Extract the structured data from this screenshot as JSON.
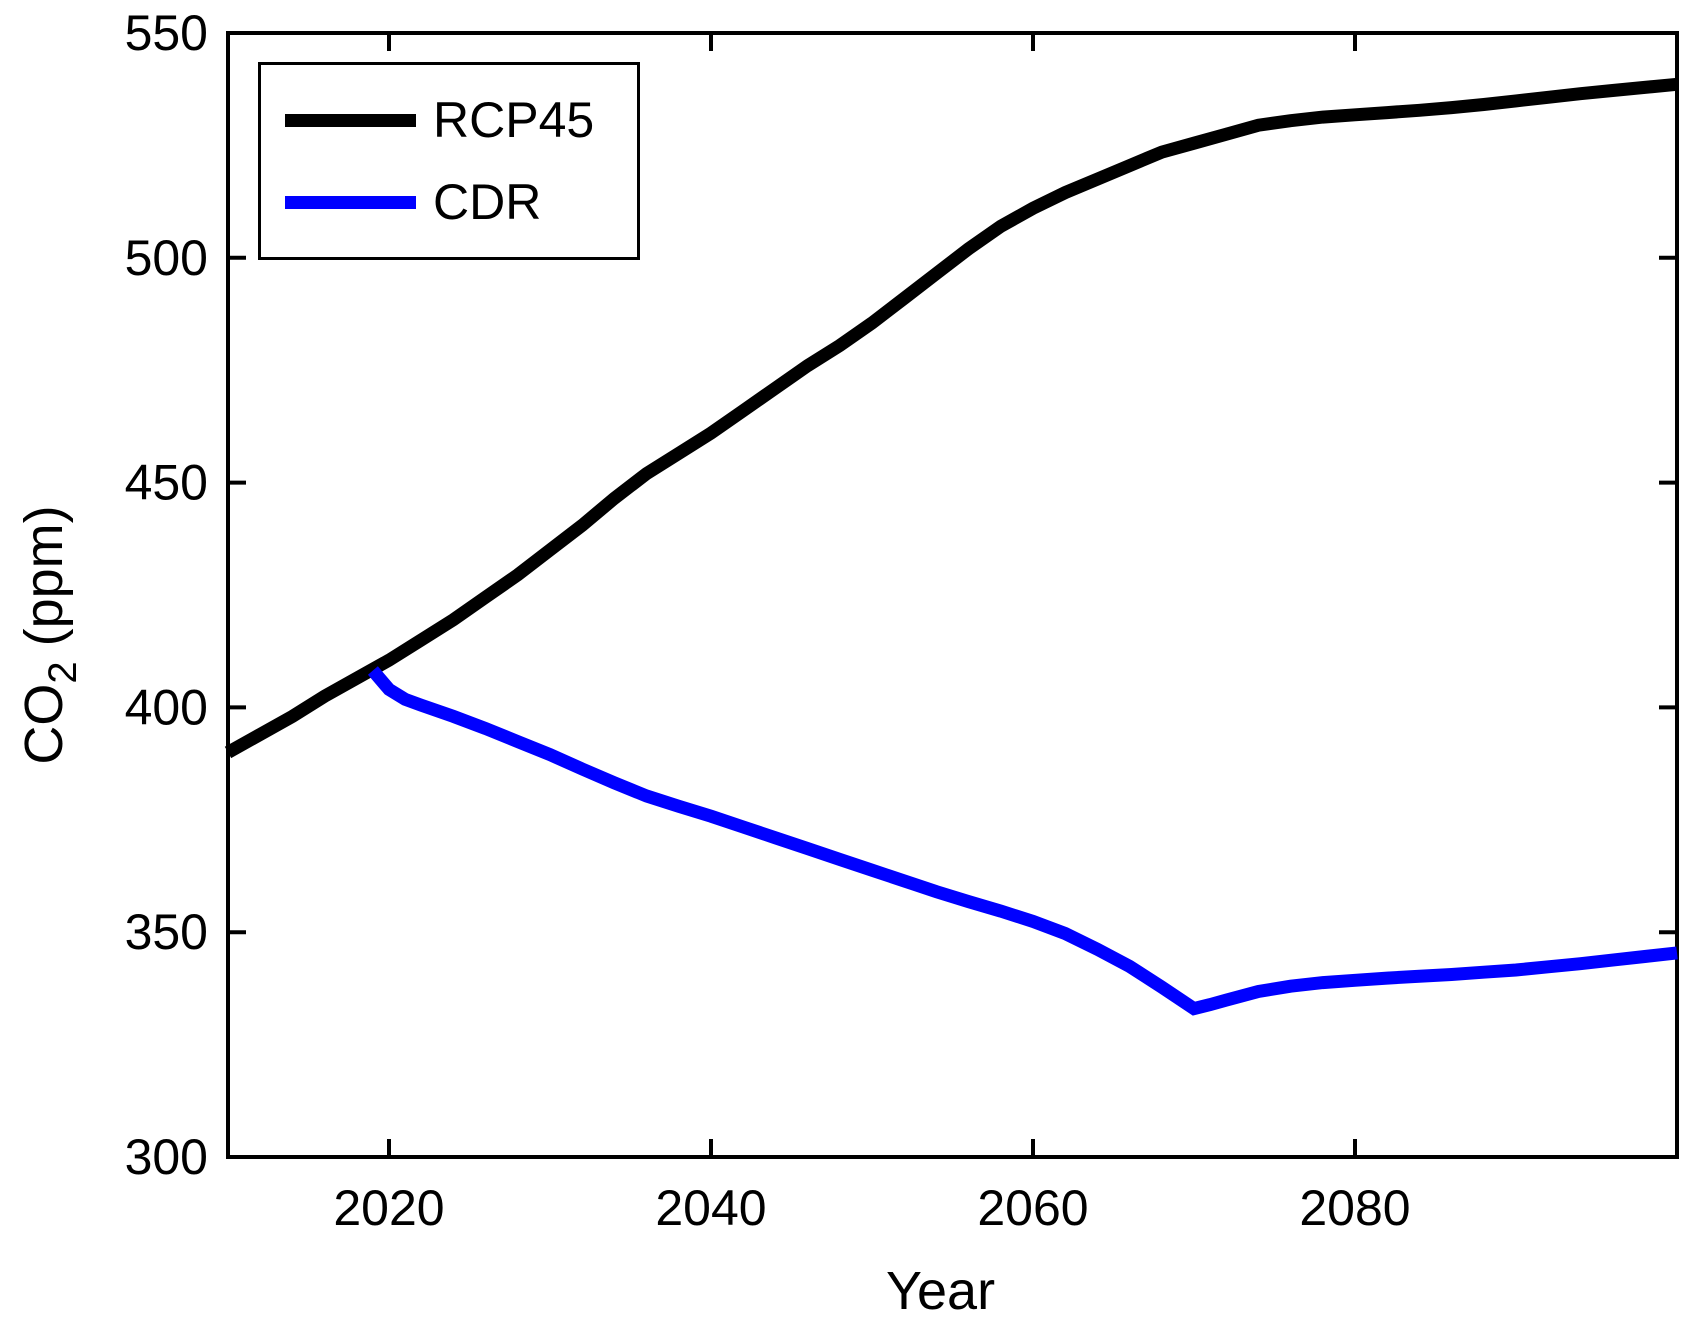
{
  "figure": {
    "background": "#ffffff",
    "axis_color": "#000000"
  },
  "legend": {
    "entries": [
      {
        "label": "RCP45",
        "color": "#000000"
      },
      {
        "label": "CDR",
        "color": "#0000ff"
      }
    ]
  },
  "chart_data": {
    "type": "line",
    "title": "",
    "xlabel": "Year",
    "ylabel": "CO2 (ppm)",
    "ylabel_parts": {
      "prefix": "CO",
      "sub": "2",
      "suffix": " (ppm)"
    },
    "xlim": [
      2010,
      2100
    ],
    "ylim": [
      300,
      550
    ],
    "xticks": [
      2020,
      2040,
      2060,
      2080
    ],
    "yticks": [
      300,
      350,
      400,
      450,
      500,
      550
    ],
    "grid": false,
    "legend_position": "top-left",
    "series": [
      {
        "name": "RCP45",
        "color": "#000000",
        "points": [
          [
            2010,
            390
          ],
          [
            2012,
            394
          ],
          [
            2014,
            398
          ],
          [
            2016,
            402.5
          ],
          [
            2018,
            406.5
          ],
          [
            2020,
            410.5
          ],
          [
            2022,
            415
          ],
          [
            2024,
            419.5
          ],
          [
            2026,
            424.5
          ],
          [
            2028,
            429.5
          ],
          [
            2030,
            435
          ],
          [
            2032,
            440.5
          ],
          [
            2034,
            446.5
          ],
          [
            2036,
            452
          ],
          [
            2038,
            456.5
          ],
          [
            2040,
            461
          ],
          [
            2042,
            466
          ],
          [
            2044,
            471
          ],
          [
            2046,
            476
          ],
          [
            2048,
            480.5
          ],
          [
            2050,
            485.5
          ],
          [
            2052,
            491
          ],
          [
            2054,
            496.5
          ],
          [
            2056,
            502
          ],
          [
            2058,
            507
          ],
          [
            2060,
            511
          ],
          [
            2062,
            514.5
          ],
          [
            2064,
            517.5
          ],
          [
            2066,
            520.5
          ],
          [
            2068,
            523.5
          ],
          [
            2070,
            525.5
          ],
          [
            2072,
            527.5
          ],
          [
            2074,
            529.5
          ],
          [
            2076,
            530.5
          ],
          [
            2078,
            531.3
          ],
          [
            2080,
            531.8
          ],
          [
            2082,
            532.3
          ],
          [
            2084,
            532.8
          ],
          [
            2086,
            533.4
          ],
          [
            2088,
            534.1
          ],
          [
            2090,
            534.9
          ],
          [
            2092,
            535.7
          ],
          [
            2094,
            536.5
          ],
          [
            2096,
            537.2
          ],
          [
            2098,
            537.9
          ],
          [
            2100,
            538.6
          ]
        ]
      },
      {
        "name": "CDR",
        "color": "#0000ff",
        "points": [
          [
            2019,
            408.2
          ],
          [
            2020,
            404
          ],
          [
            2021,
            401.8
          ],
          [
            2022,
            400.5
          ],
          [
            2024,
            398
          ],
          [
            2026,
            395.3
          ],
          [
            2028,
            392.4
          ],
          [
            2030,
            389.5
          ],
          [
            2032,
            386.3
          ],
          [
            2034,
            383.2
          ],
          [
            2036,
            380.3
          ],
          [
            2038,
            378
          ],
          [
            2040,
            375.8
          ],
          [
            2042,
            373.4
          ],
          [
            2044,
            371
          ],
          [
            2046,
            368.6
          ],
          [
            2048,
            366.2
          ],
          [
            2050,
            363.8
          ],
          [
            2052,
            361.4
          ],
          [
            2054,
            359
          ],
          [
            2056,
            356.8
          ],
          [
            2058,
            354.7
          ],
          [
            2060,
            352.4
          ],
          [
            2062,
            349.7
          ],
          [
            2064,
            346.2
          ],
          [
            2066,
            342.4
          ],
          [
            2068,
            337.8
          ],
          [
            2070,
            333
          ],
          [
            2071,
            333.9
          ],
          [
            2072,
            334.9
          ],
          [
            2074,
            336.8
          ],
          [
            2076,
            338
          ],
          [
            2078,
            338.8
          ],
          [
            2080,
            339.3
          ],
          [
            2082,
            339.8
          ],
          [
            2084,
            340.2
          ],
          [
            2086,
            340.6
          ],
          [
            2088,
            341.1
          ],
          [
            2090,
            341.6
          ],
          [
            2092,
            342.3
          ],
          [
            2094,
            343
          ],
          [
            2096,
            343.8
          ],
          [
            2098,
            344.6
          ],
          [
            2100,
            345.4
          ]
        ]
      }
    ]
  }
}
